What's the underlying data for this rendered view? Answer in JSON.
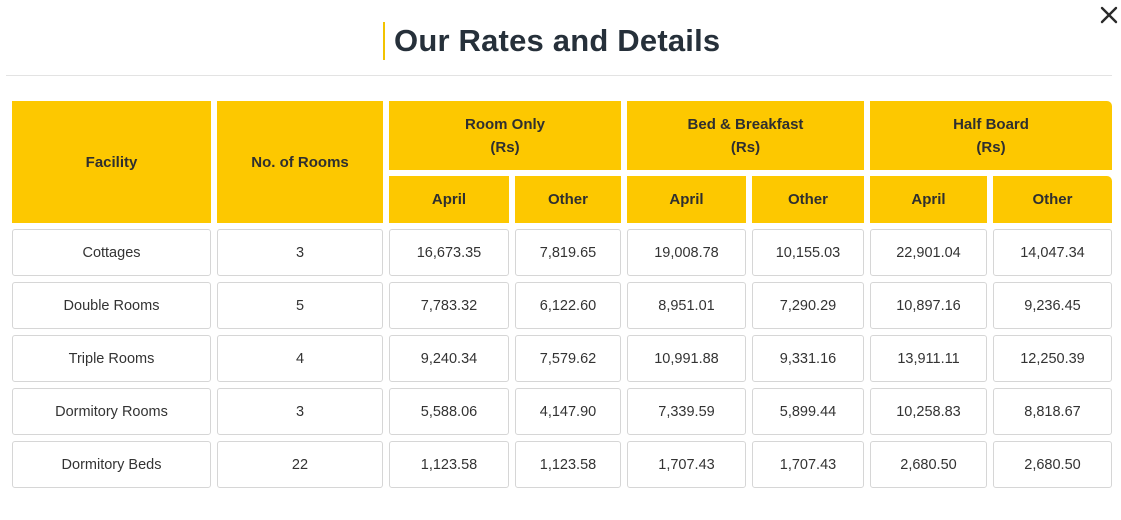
{
  "modal": {
    "title": "Our Rates and Details",
    "close_icon": "close-icon"
  },
  "table": {
    "headers": {
      "facility": "Facility",
      "rooms": "No. of Rooms",
      "groups": [
        {
          "name": "Room Only",
          "unit": "(Rs)"
        },
        {
          "name": "Bed & Breakfast",
          "unit": "(Rs)"
        },
        {
          "name": "Half Board",
          "unit": "(Rs)"
        }
      ],
      "sub": [
        "April",
        "Other",
        "April",
        "Other",
        "April",
        "Other"
      ]
    },
    "rows": [
      {
        "facility": "Cottages",
        "rooms": "3",
        "values": [
          "16,673.35",
          "7,819.65",
          "19,008.78",
          "10,155.03",
          "22,901.04",
          "14,047.34"
        ]
      },
      {
        "facility": "Double Rooms",
        "rooms": "5",
        "values": [
          "7,783.32",
          "6,122.60",
          "8,951.01",
          "7,290.29",
          "10,897.16",
          "9,236.45"
        ]
      },
      {
        "facility": "Triple Rooms",
        "rooms": "4",
        "values": [
          "9,240.34",
          "7,579.62",
          "10,991.88",
          "9,331.16",
          "13,911.11",
          "12,250.39"
        ]
      },
      {
        "facility": "Dormitory Rooms",
        "rooms": "3",
        "values": [
          "5,588.06",
          "4,147.90",
          "7,339.59",
          "5,899.44",
          "10,258.83",
          "8,818.67"
        ]
      },
      {
        "facility": "Dormitory Beds",
        "rooms": "22",
        "values": [
          "1,123.58",
          "1,123.58",
          "1,707.43",
          "1,707.43",
          "2,680.50",
          "2,680.50"
        ]
      }
    ]
  },
  "colors": {
    "header_bg": "#fdc800",
    "accent": "#f2c300",
    "title_text": "#26303a"
  }
}
